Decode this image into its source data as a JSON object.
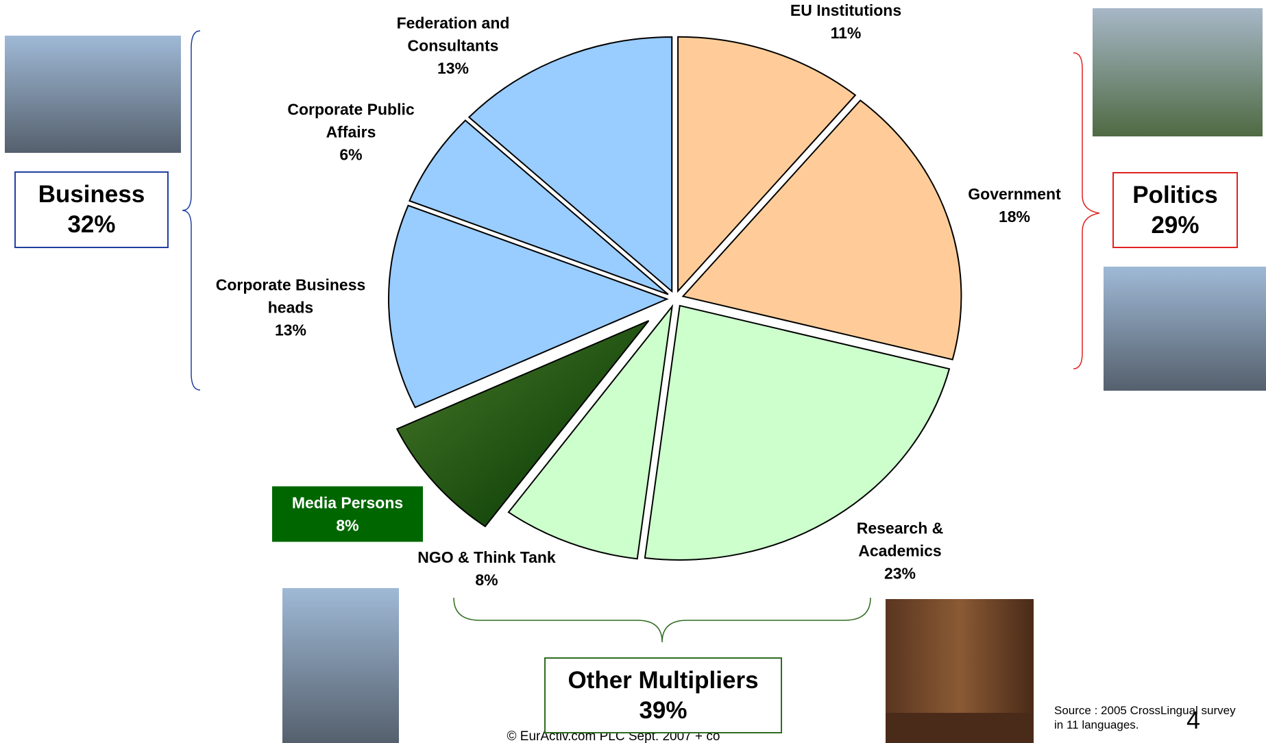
{
  "chart_data": {
    "type": "pie",
    "categories": [
      "EU Institutions",
      "Government",
      "Research & Academics",
      "NGO & Think Tank",
      "Media Persons",
      "Corporate Business heads",
      "Corporate Public Affairs",
      "Federation and Consultants"
    ],
    "values": [
      11,
      18,
      23,
      8,
      8,
      13,
      6,
      13
    ],
    "value_labels": [
      "11%",
      "18%",
      "23%",
      "8%",
      "8%",
      "13%",
      "6%",
      "13%"
    ],
    "colors": [
      "#FFCC99",
      "#FFCC99",
      "#CCFFCC",
      "#CCFFCC",
      "#006600",
      "#99CCFF",
      "#99CCFF",
      "#99CCFF"
    ],
    "groups": [
      {
        "name": "Business",
        "label": "32%",
        "color": "#1F3F9F"
      },
      {
        "name": "Politics",
        "label": "29%",
        "color": "#E02020"
      },
      {
        "name": "Other Multipliers",
        "label": "39%",
        "color": "#2E6B1F"
      }
    ]
  },
  "footer": {
    "source": "Source : 2005 CrossLingual survey in 11 languages.",
    "page": "4",
    "copyright": "© EurActiv.com PLC Sept. 2007 + co"
  }
}
